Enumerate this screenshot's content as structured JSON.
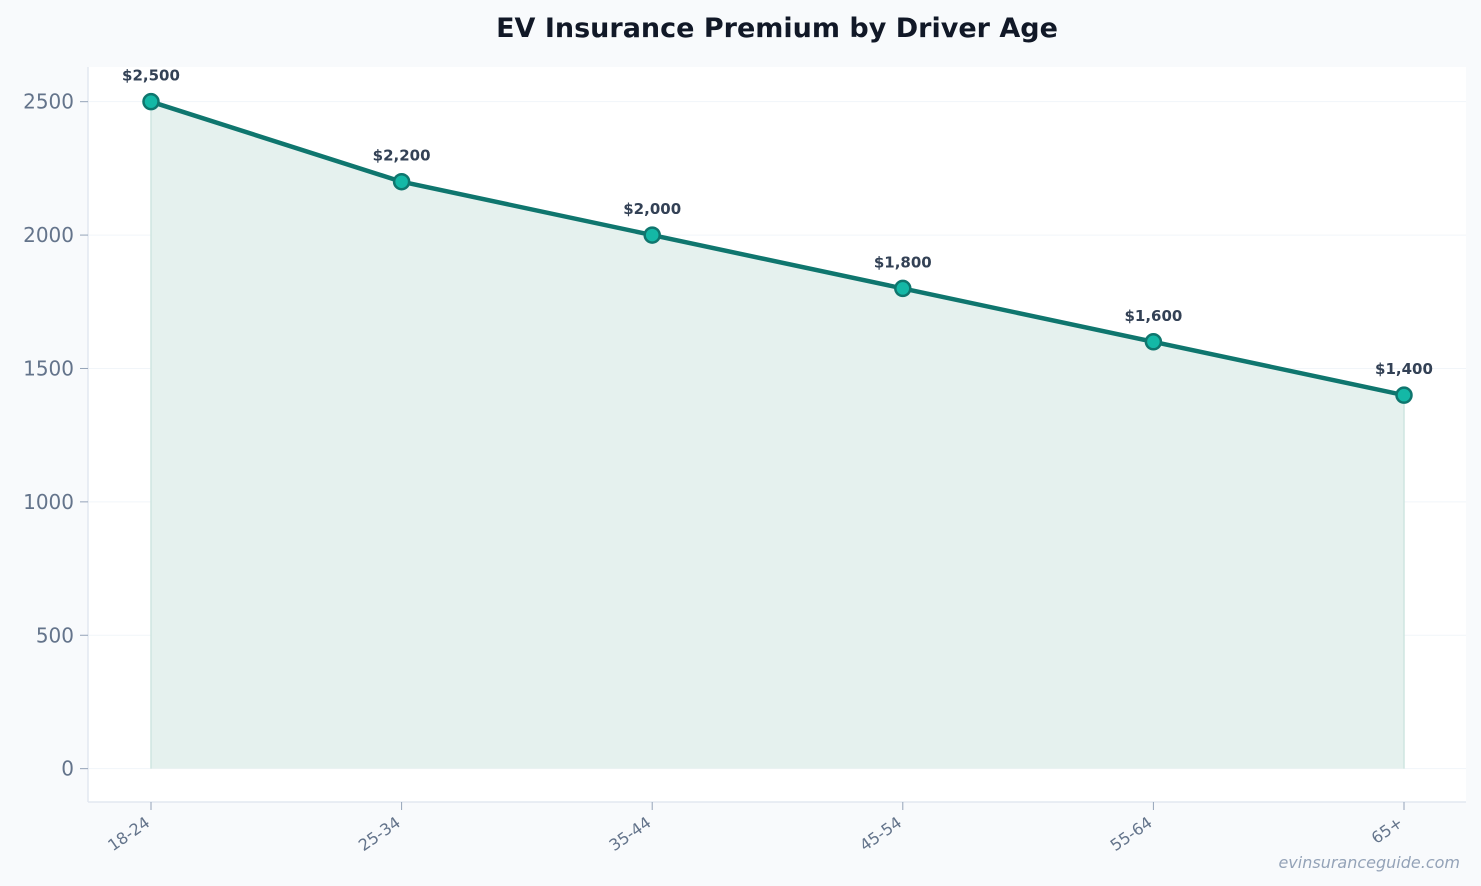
{
  "chart_data": {
    "type": "area",
    "title": "EV Insurance Premium by Driver Age",
    "xlabel": "",
    "ylabel": "",
    "categories": [
      "18-24",
      "25-34",
      "35-44",
      "45-54",
      "55-64",
      "65+"
    ],
    "series": [
      {
        "values": [
          2500,
          2200,
          2000,
          1800,
          1600,
          1400
        ],
        "data_labels": [
          "$2,500",
          "$2,200",
          "$2,000",
          "$1,800",
          "$1,600",
          "$1,400"
        ]
      }
    ],
    "yticks": [
      0,
      500,
      1000,
      1500,
      2000,
      2500
    ],
    "ylim": [
      -125,
      2630
    ],
    "grid": true,
    "legend": "none",
    "colors": {
      "line": "#0f766e",
      "marker_fill": "#14b8a6",
      "area_fill": "#e5f1ee",
      "plot_bg": "#ffffff",
      "page_bg": "#f8fafc"
    }
  },
  "watermark": "evinsuranceguide.com"
}
